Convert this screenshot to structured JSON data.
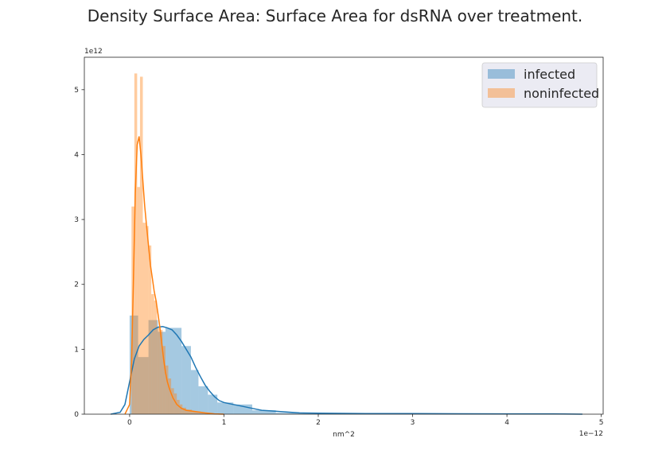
{
  "chart_data": {
    "type": "histogram+kde",
    "title": "Density Surface Area: Surface Area for dsRNA over treatment.",
    "xlabel": "nm^2",
    "ylabel": "",
    "x_offset_text": "1e−12",
    "y_offset_text": "1e12",
    "xlim": [
      -0.48,
      5.02
    ],
    "ylim": [
      0,
      5.5
    ],
    "xticks": [
      0,
      1,
      2,
      3,
      4,
      5
    ],
    "yticks": [
      0,
      1,
      2,
      3,
      4,
      5
    ],
    "legend_position": "top-right",
    "series": [
      {
        "name": "infected",
        "color": "#1f77b4",
        "hist_bins": [
          {
            "x0": 0.0,
            "x1": 0.09,
            "y": 1.52
          },
          {
            "x0": 0.09,
            "x1": 0.2,
            "y": 0.88
          },
          {
            "x0": 0.2,
            "x1": 0.3,
            "y": 1.45
          },
          {
            "x0": 0.3,
            "x1": 0.38,
            "y": 1.27
          },
          {
            "x0": 0.38,
            "x1": 0.55,
            "y": 1.33
          },
          {
            "x0": 0.55,
            "x1": 0.65,
            "y": 1.05
          },
          {
            "x0": 0.65,
            "x1": 0.73,
            "y": 0.68
          },
          {
            "x0": 0.73,
            "x1": 0.83,
            "y": 0.43
          },
          {
            "x0": 0.83,
            "x1": 0.93,
            "y": 0.3
          },
          {
            "x0": 0.93,
            "x1": 1.1,
            "y": 0.18
          },
          {
            "x0": 1.1,
            "x1": 1.3,
            "y": 0.15
          },
          {
            "x0": 1.3,
            "x1": 1.55,
            "y": 0.06
          },
          {
            "x0": 1.55,
            "x1": 2.0,
            "y": 0.02
          },
          {
            "x0": 2.0,
            "x1": 3.0,
            "y": 0.01
          },
          {
            "x0": 3.0,
            "x1": 4.0,
            "y": 0.005
          },
          {
            "x0": 4.0,
            "x1": 4.8,
            "y": 0.005
          }
        ],
        "kde": [
          [
            -0.2,
            0.0
          ],
          [
            -0.1,
            0.03
          ],
          [
            -0.05,
            0.15
          ],
          [
            0.0,
            0.5
          ],
          [
            0.05,
            0.85
          ],
          [
            0.1,
            1.05
          ],
          [
            0.15,
            1.15
          ],
          [
            0.2,
            1.22
          ],
          [
            0.25,
            1.3
          ],
          [
            0.3,
            1.34
          ],
          [
            0.35,
            1.35
          ],
          [
            0.4,
            1.33
          ],
          [
            0.45,
            1.3
          ],
          [
            0.5,
            1.22
          ],
          [
            0.55,
            1.12
          ],
          [
            0.6,
            1.0
          ],
          [
            0.65,
            0.88
          ],
          [
            0.7,
            0.72
          ],
          [
            0.75,
            0.58
          ],
          [
            0.8,
            0.45
          ],
          [
            0.85,
            0.35
          ],
          [
            0.9,
            0.27
          ],
          [
            0.95,
            0.21
          ],
          [
            1.0,
            0.18
          ],
          [
            1.1,
            0.15
          ],
          [
            1.2,
            0.12
          ],
          [
            1.3,
            0.09
          ],
          [
            1.4,
            0.06
          ],
          [
            1.5,
            0.05
          ],
          [
            1.6,
            0.04
          ],
          [
            1.8,
            0.02
          ],
          [
            2.0,
            0.015
          ],
          [
            2.5,
            0.01
          ],
          [
            3.0,
            0.008
          ],
          [
            3.5,
            0.006
          ],
          [
            4.0,
            0.005
          ],
          [
            4.5,
            0.005
          ],
          [
            4.8,
            0.0
          ]
        ]
      },
      {
        "name": "noninfected",
        "color": "#ff7f0e",
        "hist_bins": [
          {
            "x0": 0.02,
            "x1": 0.05,
            "y": 3.2
          },
          {
            "x0": 0.05,
            "x1": 0.08,
            "y": 5.25
          },
          {
            "x0": 0.08,
            "x1": 0.11,
            "y": 3.5
          },
          {
            "x0": 0.11,
            "x1": 0.14,
            "y": 5.2
          },
          {
            "x0": 0.14,
            "x1": 0.17,
            "y": 2.95
          },
          {
            "x0": 0.17,
            "x1": 0.2,
            "y": 2.9
          },
          {
            "x0": 0.2,
            "x1": 0.23,
            "y": 2.6
          },
          {
            "x0": 0.23,
            "x1": 0.26,
            "y": 1.85
          },
          {
            "x0": 0.26,
            "x1": 0.29,
            "y": 1.75
          },
          {
            "x0": 0.29,
            "x1": 0.32,
            "y": 1.35
          },
          {
            "x0": 0.32,
            "x1": 0.35,
            "y": 1.3
          },
          {
            "x0": 0.35,
            "x1": 0.38,
            "y": 1.05
          },
          {
            "x0": 0.38,
            "x1": 0.41,
            "y": 0.75
          },
          {
            "x0": 0.41,
            "x1": 0.44,
            "y": 0.55
          },
          {
            "x0": 0.44,
            "x1": 0.47,
            "y": 0.4
          },
          {
            "x0": 0.47,
            "x1": 0.5,
            "y": 0.32
          },
          {
            "x0": 0.5,
            "x1": 0.53,
            "y": 0.22
          },
          {
            "x0": 0.53,
            "x1": 0.56,
            "y": 0.15
          },
          {
            "x0": 0.56,
            "x1": 0.6,
            "y": 0.1
          },
          {
            "x0": 0.6,
            "x1": 0.66,
            "y": 0.07
          },
          {
            "x0": 0.66,
            "x1": 0.75,
            "y": 0.04
          },
          {
            "x0": 0.75,
            "x1": 0.85,
            "y": 0.02
          }
        ],
        "kde": [
          [
            -0.05,
            0.0
          ],
          [
            0.0,
            0.15
          ],
          [
            0.02,
            0.8
          ],
          [
            0.04,
            2.0
          ],
          [
            0.06,
            3.4
          ],
          [
            0.08,
            4.15
          ],
          [
            0.1,
            4.28
          ],
          [
            0.12,
            4.0
          ],
          [
            0.14,
            3.6
          ],
          [
            0.16,
            3.2
          ],
          [
            0.18,
            2.9
          ],
          [
            0.2,
            2.6
          ],
          [
            0.22,
            2.3
          ],
          [
            0.24,
            2.1
          ],
          [
            0.26,
            1.9
          ],
          [
            0.28,
            1.75
          ],
          [
            0.3,
            1.55
          ],
          [
            0.32,
            1.35
          ],
          [
            0.34,
            1.1
          ],
          [
            0.36,
            0.85
          ],
          [
            0.38,
            0.65
          ],
          [
            0.4,
            0.5
          ],
          [
            0.42,
            0.4
          ],
          [
            0.44,
            0.32
          ],
          [
            0.46,
            0.25
          ],
          [
            0.5,
            0.15
          ],
          [
            0.55,
            0.09
          ],
          [
            0.6,
            0.06
          ],
          [
            0.7,
            0.04
          ],
          [
            0.8,
            0.02
          ],
          [
            0.9,
            0.005
          ],
          [
            1.0,
            0.0
          ]
        ]
      }
    ]
  }
}
